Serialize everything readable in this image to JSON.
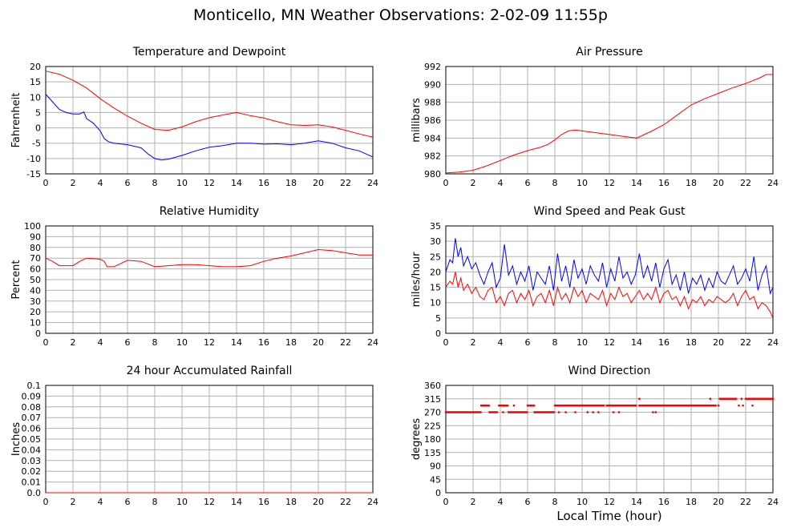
{
  "page": {
    "title": "Monticello, MN Weather Observations: 2-02-09 11:55p"
  },
  "chart_data": [
    {
      "id": "temp",
      "type": "line",
      "title": "Temperature and Dewpoint",
      "xlabel": "",
      "ylabel": "Fahrenheit",
      "xlim": [
        0,
        24
      ],
      "ylim": [
        -15,
        20
      ],
      "xticks": [
        0,
        2,
        4,
        6,
        8,
        10,
        12,
        14,
        16,
        18,
        20,
        22,
        24
      ],
      "yticks": [
        -15,
        -10,
        -5,
        0,
        5,
        10,
        15,
        20
      ],
      "grid": true,
      "series": [
        {
          "color": "#ff0000",
          "x": [
            0,
            1,
            2,
            3,
            4,
            5,
            6,
            7,
            8,
            9,
            10,
            11,
            12,
            13,
            14,
            15,
            16,
            17,
            18,
            19,
            20,
            21,
            22,
            23,
            24
          ],
          "y": [
            18.5,
            17.5,
            15.5,
            13,
            9.5,
            6.5,
            3.8,
            1.5,
            -0.5,
            -0.8,
            0.3,
            2,
            3.3,
            4.2,
            5,
            4,
            3.2,
            2,
            1,
            0.8,
            1,
            0.3,
            -0.8,
            -2,
            -3
          ]
        },
        {
          "color": "#0000ff",
          "x": [
            0,
            0.5,
            1,
            1.5,
            2,
            2.5,
            2.8,
            3,
            3.5,
            4,
            4.3,
            4.6,
            5,
            6,
            7,
            7.5,
            8,
            8.5,
            9,
            10,
            11,
            12,
            13,
            14,
            15,
            16,
            17,
            18,
            19,
            20,
            21,
            22,
            23,
            24
          ],
          "y": [
            11,
            8.5,
            6,
            5,
            4.5,
            4.5,
            5.2,
            3,
            1.5,
            -1,
            -3.5,
            -4.5,
            -5,
            -5.5,
            -6.5,
            -8.5,
            -10,
            -10.5,
            -10.2,
            -9,
            -7.5,
            -6.3,
            -5.8,
            -5,
            -5,
            -5.3,
            -5.2,
            -5.5,
            -5,
            -4.2,
            -5,
            -6.5,
            -7.5,
            -9.5
          ]
        }
      ]
    },
    {
      "id": "pressure",
      "type": "line",
      "title": "Air Pressure",
      "xlabel": "",
      "ylabel": "millibars",
      "xlim": [
        0,
        24
      ],
      "ylim": [
        980,
        992
      ],
      "xticks": [
        0,
        2,
        4,
        6,
        8,
        10,
        12,
        14,
        16,
        18,
        20,
        22,
        24
      ],
      "yticks": [
        980,
        982,
        984,
        986,
        988,
        990,
        992
      ],
      "grid": true,
      "series": [
        {
          "color": "#ff0000",
          "x": [
            0,
            1,
            2,
            3,
            4,
            5,
            6,
            7,
            7.5,
            8,
            8.5,
            9,
            9.5,
            10,
            11,
            12,
            13,
            13.5,
            14,
            15,
            16,
            17,
            18,
            19,
            20,
            21,
            22,
            23,
            23.5,
            24
          ],
          "y": [
            980.1,
            980.2,
            980.4,
            980.9,
            981.5,
            982.1,
            982.6,
            983,
            983.3,
            983.8,
            984.4,
            984.8,
            984.9,
            984.8,
            984.6,
            984.4,
            984.2,
            984.1,
            984,
            984.7,
            985.5,
            986.6,
            987.7,
            988.4,
            989,
            989.6,
            990.1,
            990.7,
            991.1,
            991.1
          ]
        }
      ]
    },
    {
      "id": "humidity",
      "type": "line",
      "title": "Relative Humidity",
      "xlabel": "",
      "ylabel": "Percent",
      "xlim": [
        0,
        24
      ],
      "ylim": [
        0,
        100
      ],
      "xticks": [
        0,
        2,
        4,
        6,
        8,
        10,
        12,
        14,
        16,
        18,
        20,
        22,
        24
      ],
      "yticks": [
        0,
        10,
        20,
        30,
        40,
        50,
        60,
        70,
        80,
        90,
        100
      ],
      "grid": true,
      "series": [
        {
          "color": "#ff0000",
          "x": [
            0,
            0.5,
            1,
            2,
            2.5,
            3,
            4,
            4.3,
            4.5,
            5,
            5.5,
            6,
            7,
            8,
            9,
            10,
            11,
            12,
            13,
            14,
            15,
            16,
            17,
            18,
            19,
            20,
            21,
            22,
            23,
            24
          ],
          "y": [
            70,
            67,
            63,
            63,
            67,
            70,
            69,
            67,
            62,
            62,
            65,
            68,
            67,
            62,
            63,
            64,
            64,
            63,
            62,
            62,
            63,
            67,
            70,
            72,
            75,
            78,
            77,
            75,
            73,
            73
          ]
        }
      ]
    },
    {
      "id": "wind",
      "type": "line",
      "title": "Wind Speed and Peak Gust",
      "xlabel": "",
      "ylabel": "miles/hour",
      "xlim": [
        0,
        24
      ],
      "ylim": [
        0,
        35
      ],
      "xticks": [
        0,
        2,
        4,
        6,
        8,
        10,
        12,
        14,
        16,
        18,
        20,
        22,
        24
      ],
      "yticks": [
        0,
        5,
        10,
        15,
        20,
        25,
        30,
        35
      ],
      "grid": true,
      "series": [
        {
          "color": "#0000ff",
          "x": [
            0,
            0.3,
            0.5,
            0.7,
            0.9,
            1.1,
            1.3,
            1.6,
            1.9,
            2.2,
            2.5,
            2.8,
            3.1,
            3.4,
            3.7,
            4.0,
            4.3,
            4.6,
            4.9,
            5.2,
            5.5,
            5.8,
            6.1,
            6.4,
            6.7,
            7.0,
            7.3,
            7.6,
            7.9,
            8.2,
            8.5,
            8.8,
            9.1,
            9.4,
            9.7,
            10.0,
            10.3,
            10.6,
            10.9,
            11.2,
            11.5,
            11.8,
            12.1,
            12.4,
            12.7,
            13.0,
            13.3,
            13.6,
            13.9,
            14.2,
            14.5,
            14.8,
            15.1,
            15.4,
            15.7,
            16.0,
            16.3,
            16.6,
            16.9,
            17.2,
            17.5,
            17.8,
            18.1,
            18.4,
            18.7,
            19.0,
            19.3,
            19.6,
            19.9,
            20.2,
            20.5,
            20.8,
            21.1,
            21.4,
            21.7,
            22.0,
            22.3,
            22.6,
            22.9,
            23.2,
            23.5,
            23.8,
            24.0
          ],
          "y": [
            20,
            24,
            23,
            31,
            25,
            28,
            22,
            25,
            21,
            23,
            19,
            16,
            20,
            23,
            15,
            18,
            29,
            19,
            22,
            16,
            20,
            17,
            22,
            14,
            20,
            18,
            16,
            22,
            14,
            26,
            17,
            22,
            15,
            24,
            18,
            21,
            16,
            22,
            19,
            17,
            23,
            15,
            21,
            17,
            25,
            18,
            20,
            16,
            19,
            26,
            18,
            22,
            17,
            23,
            15,
            21,
            24,
            16,
            19,
            14,
            20,
            13,
            18,
            16,
            19,
            14,
            18,
            15,
            20,
            17,
            16,
            19,
            22,
            16,
            18,
            21,
            17,
            25,
            14,
            19,
            22,
            13,
            15
          ]
        },
        {
          "color": "#ff0000",
          "x": [
            0,
            0.3,
            0.5,
            0.7,
            0.9,
            1.1,
            1.3,
            1.6,
            1.9,
            2.2,
            2.5,
            2.8,
            3.1,
            3.4,
            3.7,
            4.0,
            4.3,
            4.6,
            4.9,
            5.2,
            5.5,
            5.8,
            6.1,
            6.4,
            6.7,
            7.0,
            7.3,
            7.6,
            7.9,
            8.2,
            8.5,
            8.8,
            9.1,
            9.4,
            9.7,
            10.0,
            10.3,
            10.6,
            10.9,
            11.2,
            11.5,
            11.8,
            12.1,
            12.4,
            12.7,
            13.0,
            13.3,
            13.6,
            13.9,
            14.2,
            14.5,
            14.8,
            15.1,
            15.4,
            15.7,
            16.0,
            16.3,
            16.6,
            16.9,
            17.2,
            17.5,
            17.8,
            18.1,
            18.4,
            18.7,
            19.0,
            19.3,
            19.6,
            19.9,
            20.2,
            20.5,
            20.8,
            21.1,
            21.4,
            21.7,
            22.0,
            22.3,
            22.6,
            22.9,
            23.2,
            23.5,
            23.8,
            24.0
          ],
          "y": [
            15,
            17,
            16,
            20,
            15,
            18,
            14,
            16,
            13,
            15,
            12,
            11,
            14,
            15,
            10,
            12,
            9,
            13,
            14,
            10,
            13,
            11,
            14,
            9,
            12,
            13,
            10,
            14,
            9,
            15,
            11,
            13,
            10,
            15,
            12,
            14,
            10,
            13,
            12,
            11,
            14,
            9,
            13,
            11,
            15,
            12,
            13,
            10,
            12,
            14,
            11,
            13,
            11,
            15,
            10,
            13,
            14,
            11,
            12,
            9,
            12,
            8,
            11,
            10,
            12,
            9,
            11,
            10,
            12,
            11,
            10,
            11,
            13,
            9,
            12,
            14,
            11,
            12,
            8,
            10,
            9,
            7,
            5
          ]
        }
      ]
    },
    {
      "id": "rain",
      "type": "line",
      "title": "24 hour Accumulated Rainfall",
      "xlabel": "",
      "ylabel": "Inches",
      "xlim": [
        0,
        24
      ],
      "ylim": [
        0,
        0.1
      ],
      "xticks": [
        0,
        2,
        4,
        6,
        8,
        10,
        12,
        14,
        16,
        18,
        20,
        22,
        24
      ],
      "yticks": [
        "0.0",
        "0.01",
        "0.02",
        "0.03",
        "0.04",
        "0.05",
        "0.06",
        "0.07",
        "0.08",
        "0.09",
        "0.1"
      ],
      "grid": true,
      "series": [
        {
          "color": "#ff0000",
          "x": [
            0,
            24
          ],
          "y": [
            0,
            0
          ]
        }
      ]
    },
    {
      "id": "direction",
      "type": "scatter",
      "title": "Wind Direction",
      "xlabel": "Local Time (hour)",
      "ylabel": "degrees",
      "xlim": [
        0,
        24
      ],
      "ylim": [
        0,
        360
      ],
      "xticks": [
        0,
        2,
        4,
        6,
        8,
        10,
        12,
        14,
        16,
        18,
        20,
        22,
        24
      ],
      "yticks": [
        0,
        45,
        90,
        135,
        180,
        225,
        270,
        315,
        360
      ],
      "grid": true,
      "segments": [
        {
          "from": 0,
          "to": 2.6,
          "y": 270
        },
        {
          "from": 2.6,
          "to": 3.2,
          "y": 292.5
        },
        {
          "from": 3.2,
          "to": 3.8,
          "y": 270
        },
        {
          "from": 3.9,
          "to": 4.6,
          "y": 292.5
        },
        {
          "from": 4.6,
          "to": 6.0,
          "y": 270
        },
        {
          "from": 6.0,
          "to": 6.5,
          "y": 292.5
        },
        {
          "from": 6.5,
          "to": 8.0,
          "y": 270
        },
        {
          "from": 8.0,
          "to": 11.6,
          "y": 292.5
        },
        {
          "from": 11.8,
          "to": 14.0,
          "y": 292.5
        },
        {
          "from": 14.2,
          "to": 19.8,
          "y": 292.5
        },
        {
          "from": 20.1,
          "to": 21.3,
          "y": 315
        },
        {
          "from": 22.0,
          "to": 24.0,
          "y": 315
        }
      ],
      "points": [
        {
          "x": 8.3,
          "y": 270
        },
        {
          "x": 8.8,
          "y": 270
        },
        {
          "x": 9.5,
          "y": 270
        },
        {
          "x": 10.4,
          "y": 270
        },
        {
          "x": 10.8,
          "y": 270
        },
        {
          "x": 11.2,
          "y": 270
        },
        {
          "x": 12.3,
          "y": 270
        },
        {
          "x": 12.7,
          "y": 270
        },
        {
          "x": 14.2,
          "y": 315
        },
        {
          "x": 15.2,
          "y": 270
        },
        {
          "x": 15.4,
          "y": 270
        },
        {
          "x": 19.4,
          "y": 315
        },
        {
          "x": 20.0,
          "y": 292.5
        },
        {
          "x": 21.5,
          "y": 292.5
        },
        {
          "x": 21.7,
          "y": 315
        },
        {
          "x": 21.8,
          "y": 292.5
        },
        {
          "x": 22.5,
          "y": 292.5
        },
        {
          "x": 4.2,
          "y": 270
        },
        {
          "x": 5.0,
          "y": 292.5
        }
      ]
    }
  ]
}
